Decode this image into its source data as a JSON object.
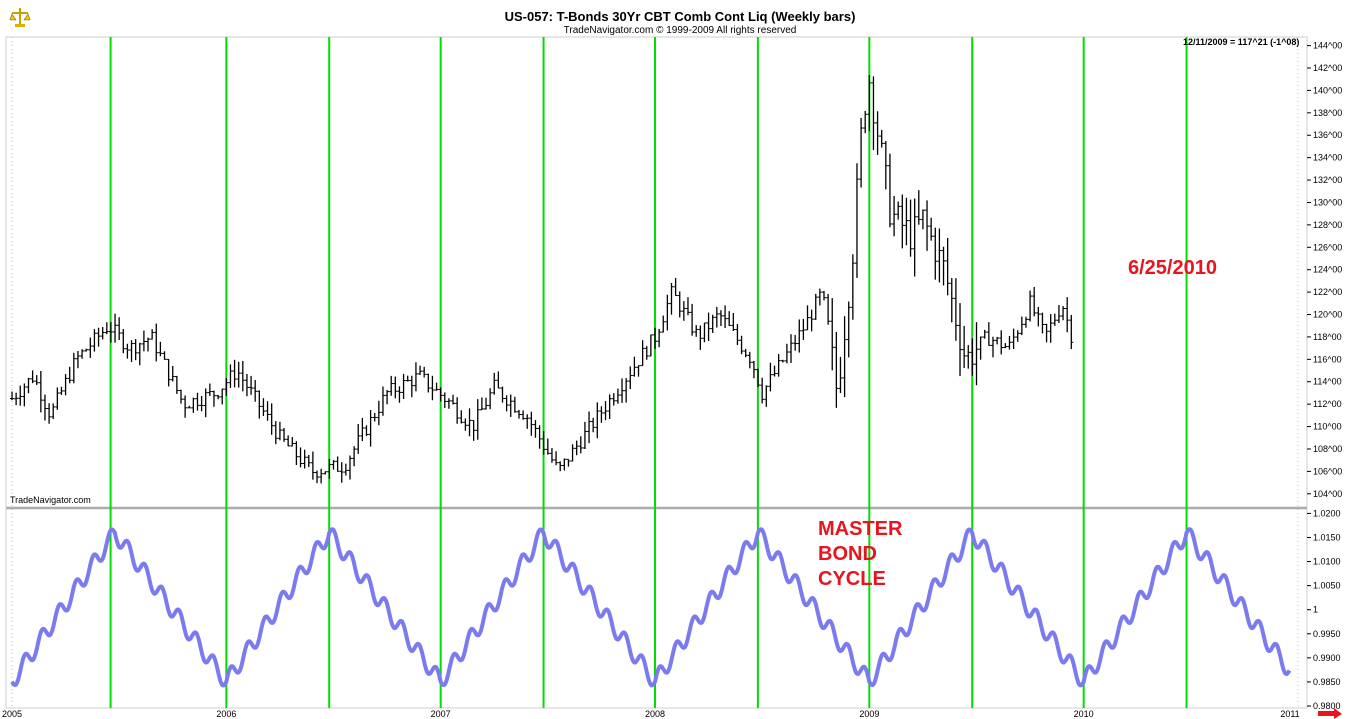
{
  "header": {
    "title": "US-057:  T-Bonds 30Yr CBT Comb Cont Liq  (Weekly bars)",
    "copyright": "TradeNavigator.com © 1999-2009 All rights reserved",
    "watermark": "TradeNavigator.com",
    "last_value": "12/11/2009 = 117^21 (-1^08)",
    "logo_icon": "scales-icon",
    "next_icon": "right-arrow-icon"
  },
  "annotations": {
    "date_label": "6/25/2010",
    "cycle_label": [
      "MASTER",
      "BOND",
      "CYCLE"
    ]
  },
  "colors": {
    "cycle_lines": "#00dd00",
    "cycle_curve": "#7b7bef",
    "bars": "#000000",
    "annotation": "#e8141e"
  },
  "chart_data": [
    {
      "type": "ohlc",
      "title": "US-057:  T-Bonds 30Yr CBT Comb Cont Liq  (Weekly bars)",
      "y_ticks": [
        "104^00",
        "106^00",
        "108^00",
        "110^00",
        "112^00",
        "114^00",
        "116^00",
        "118^00",
        "120^00",
        "122^00",
        "124^00",
        "126^00",
        "128^00",
        "130^00",
        "132^00",
        "134^00",
        "136^00",
        "138^00",
        "140^00",
        "142^00",
        "144^00"
      ],
      "ylim": [
        103,
        144.5
      ],
      "xlim": [
        2005.0,
        2011.0
      ],
      "x_ticks": [
        "2005",
        "2006",
        "2007",
        "2008",
        "2009",
        "2010",
        "2011"
      ],
      "close_path": [
        [
          2005.0,
          112.5
        ],
        [
          2005.1,
          114.5
        ],
        [
          2005.18,
          111
        ],
        [
          2005.3,
          116
        ],
        [
          2005.45,
          119
        ],
        [
          2005.55,
          117
        ],
        [
          2005.65,
          118
        ],
        [
          2005.8,
          112
        ],
        [
          2005.95,
          113
        ],
        [
          2006.05,
          115
        ],
        [
          2006.25,
          109
        ],
        [
          2006.4,
          106
        ],
        [
          2006.55,
          106.5
        ],
        [
          2006.75,
          113
        ],
        [
          2006.9,
          114.5
        ],
        [
          2007.05,
          112
        ],
        [
          2007.15,
          110
        ],
        [
          2007.25,
          113.5
        ],
        [
          2007.4,
          111
        ],
        [
          2007.55,
          106
        ],
        [
          2007.7,
          110
        ],
        [
          2007.85,
          114
        ],
        [
          2008.0,
          118
        ],
        [
          2008.08,
          122
        ],
        [
          2008.2,
          118
        ],
        [
          2008.3,
          120
        ],
        [
          2008.45,
          116
        ],
        [
          2008.5,
          113
        ],
        [
          2008.6,
          116
        ],
        [
          2008.7,
          119
        ],
        [
          2008.78,
          122
        ],
        [
          2008.85,
          113
        ],
        [
          2008.92,
          125
        ],
        [
          2008.97,
          138
        ],
        [
          2009.0,
          141
        ],
        [
          2009.05,
          135
        ],
        [
          2009.1,
          129
        ],
        [
          2009.2,
          127
        ],
        [
          2009.25,
          128.5
        ],
        [
          2009.35,
          124
        ],
        [
          2009.45,
          116
        ],
        [
          2009.55,
          118
        ],
        [
          2009.65,
          117
        ],
        [
          2009.75,
          121
        ],
        [
          2009.82,
          118
        ],
        [
          2009.9,
          121
        ],
        [
          2009.95,
          117.7
        ]
      ]
    },
    {
      "type": "line",
      "y_ticks": [
        "0.9800",
        "0.9850",
        "0.9900",
        "0.9950",
        "1",
        "1.0050",
        "1.0100",
        "1.0150",
        "1.0200"
      ],
      "ylim": [
        0.98,
        1.0205
      ],
      "xlim": [
        2005.0,
        2011.0
      ],
      "period_years": 1.0,
      "peaks": [
        2005.46,
        2006.48,
        2007.48,
        2008.48,
        2009.48,
        2010.48
      ],
      "troughs": [
        2006.0,
        2007.0,
        2008.0,
        2009.0,
        2010.0
      ],
      "min": 0.9825,
      "max": 1.0185
    }
  ],
  "cycle_dates": [
    2005.46,
    2006.0,
    2006.48,
    2007.0,
    2007.48,
    2008.0,
    2008.48,
    2009.0,
    2009.48,
    2010.0,
    2010.48
  ]
}
